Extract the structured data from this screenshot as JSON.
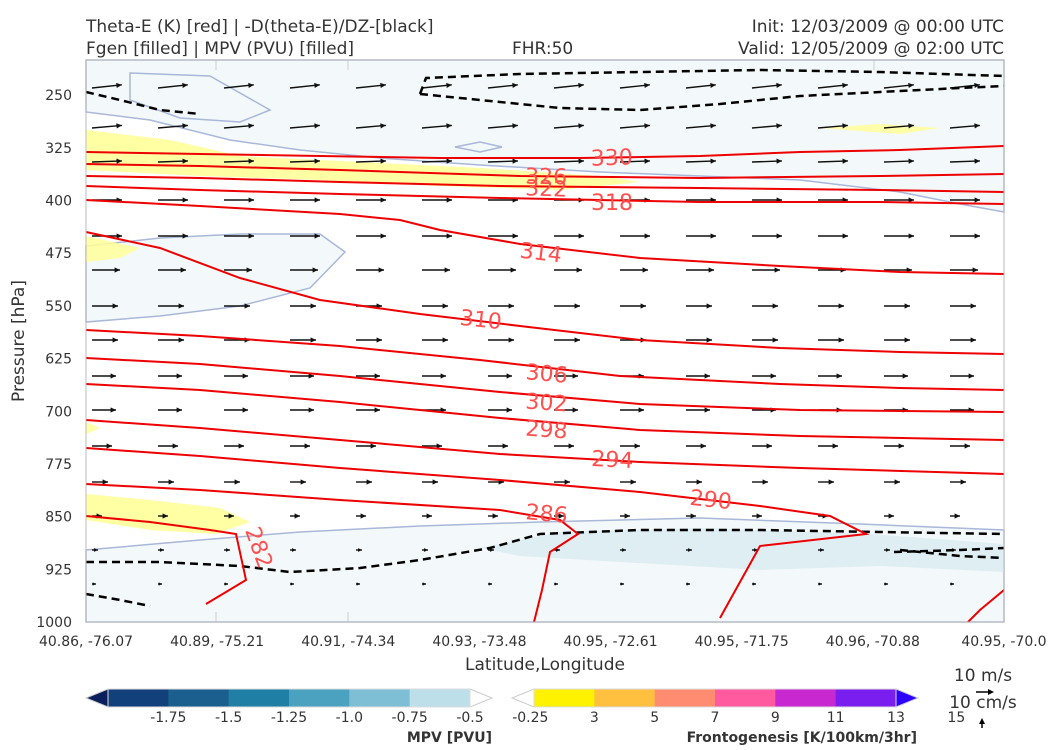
{
  "header": {
    "title_left_line1": "Theta-E (K) [red] | -D(theta-E)/DZ-[black]",
    "title_left_line2": "Fgen [filled] | MPV (PVU) [filled]",
    "fhr": "FHR:50",
    "init": "Init: 12/03/2009 @ 00:00 UTC",
    "valid": "Valid: 12/05/2009 @ 02:00 UTC"
  },
  "chart_data": {
    "type": "contour",
    "xlabel": "Latitude,Longitude",
    "ylabel": "Pressure [hPa]",
    "y_axis": {
      "reversed": true,
      "range": [
        200,
        1000
      ],
      "ticks": [
        250,
        325,
        400,
        475,
        550,
        625,
        700,
        775,
        850,
        925,
        1000
      ]
    },
    "x_axis": {
      "ticks": [
        "40.86, -76.07",
        "40.89, -75.21",
        "40.91, -74.34",
        "40.93, -73.48",
        "40.95, -72.61",
        "40.95, -71.75",
        "40.96, -70.88",
        "40.95, -70.0"
      ]
    },
    "grid": true,
    "theta_e_labels": [
      {
        "label": "330",
        "x": 4.3,
        "p": 345
      },
      {
        "label": "326",
        "x": 3.6,
        "p": 372
      },
      {
        "label": "322",
        "x": 3.6,
        "p": 387
      },
      {
        "label": "318",
        "x": 4.4,
        "p": 400
      },
      {
        "label": "314",
        "x": 3.5,
        "p": 480
      },
      {
        "label": "310",
        "x": 3.0,
        "p": 568
      },
      {
        "label": "306",
        "x": 3.6,
        "p": 648
      },
      {
        "label": "302",
        "x": 3.6,
        "p": 687
      },
      {
        "label": "298",
        "x": 3.6,
        "p": 721
      },
      {
        "label": "294",
        "x": 4.0,
        "p": 760
      },
      {
        "label": "290",
        "x": 4.6,
        "p": 820
      },
      {
        "label": "286",
        "x": 3.6,
        "p": 853
      },
      {
        "label": "282",
        "x": 1.2,
        "p": 895
      }
    ],
    "theta_e_color": "#ee0000",
    "dtheta_dz_color": "#000000",
    "mpv_colorbar": {
      "title": "MPV [PVU]",
      "tick_labels": [
        "-1.75",
        "-1.5",
        "-1.25",
        "-1.0",
        "-0.75",
        "-0.5",
        "-0.25"
      ],
      "colors": [
        "#0a1f5c",
        "#12407a",
        "#1b5f8f",
        "#1f7fa5",
        "#4aa2c0",
        "#7fbfd5",
        "#bddfe9",
        "#ffffff"
      ]
    },
    "fgen_colorbar": {
      "title": "Frontogenesis [K/100km/3hr]",
      "tick_labels": [
        "3",
        "5",
        "7",
        "9",
        "11",
        "13",
        "15"
      ],
      "colors": [
        "#ffffff",
        "#fff200",
        "#ffc040",
        "#ff8c70",
        "#ff5aa0",
        "#c828d0",
        "#7a1ef0",
        "#2d00ff"
      ]
    },
    "vector_legend": {
      "horizontal": "10 m/s",
      "vertical": "10 cm/s"
    }
  }
}
